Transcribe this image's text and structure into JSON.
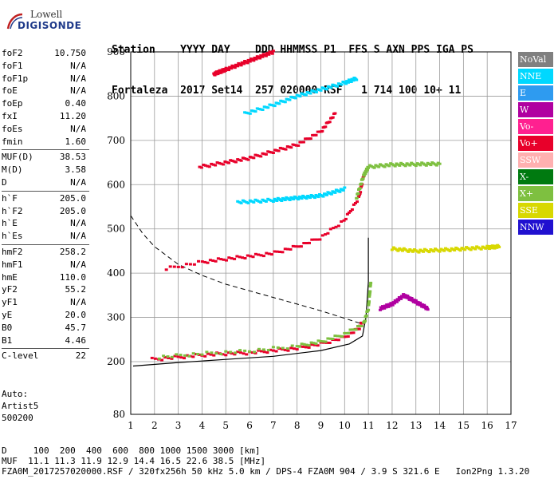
{
  "logo": {
    "line1": "Lowell",
    "line2": "DIGISONDE"
  },
  "header": {
    "line1": "Station    YYYY DAY    DDD HHMMSS P1  FFS S AXN PPS IGA PS",
    "line2": "Fortaleza  2017 Set14  257 020000 RSF   1 714 100 10+ 11"
  },
  "params": [
    {
      "label": "foF2",
      "value": "10.750"
    },
    {
      "label": "foF1",
      "value": "N/A"
    },
    {
      "label": "foF1p",
      "value": "N/A"
    },
    {
      "label": "foE",
      "value": "N/A"
    },
    {
      "label": "foEp",
      "value": "0.40"
    },
    {
      "label": "fxI",
      "value": "11.20"
    },
    {
      "label": "foEs",
      "value": "N/A"
    },
    {
      "label": "fmin",
      "value": "1.60"
    },
    {
      "label": "MUF(D)",
      "value": "38.53"
    },
    {
      "label": "M(D)",
      "value": "3.58"
    },
    {
      "label": "D",
      "value": "N/A"
    },
    {
      "label": "h`F",
      "value": "205.0"
    },
    {
      "label": "h`F2",
      "value": "205.0"
    },
    {
      "label": "h`E",
      "value": "N/A"
    },
    {
      "label": "h`Es",
      "value": "N/A"
    },
    {
      "label": "hmF2",
      "value": "258.2"
    },
    {
      "label": "hmF1",
      "value": "N/A"
    },
    {
      "label": "hmE",
      "value": "110.0"
    },
    {
      "label": "yF2",
      "value": "55.2"
    },
    {
      "label": "yF1",
      "value": "N/A"
    },
    {
      "label": "yE",
      "value": "20.0"
    },
    {
      "label": "B0",
      "value": "45.7"
    },
    {
      "label": "B1",
      "value": "4.46"
    },
    {
      "label": "C-level",
      "value": "22"
    }
  ],
  "auto": {
    "line1": "Auto:",
    "line2": "Artist5",
    "line3": "500200"
  },
  "legend": [
    {
      "label": "NoVal",
      "color": "#808080",
      "text": "#ffffff"
    },
    {
      "label": "NNE",
      "color": "#00d8ff",
      "text": "#ffffff"
    },
    {
      "label": "E",
      "color": "#2e9bf0",
      "text": "#ffffff"
    },
    {
      "label": "W",
      "color": "#b000a0",
      "text": "#ffffff"
    },
    {
      "label": "Vo-",
      "color": "#ff2090",
      "text": "#ffffff"
    },
    {
      "label": "Vo+",
      "color": "#e8002a",
      "text": "#ffffff"
    },
    {
      "label": "SSW",
      "color": "#ffb0b0",
      "text": "#ffffff"
    },
    {
      "label": "X-",
      "color": "#007a10",
      "text": "#ffffff"
    },
    {
      "label": "X+",
      "color": "#7ec040",
      "text": "#ffffff"
    },
    {
      "label": "SSE",
      "color": "#d8d800",
      "text": "#ffffff"
    },
    {
      "label": "NNW",
      "color": "#2010d0",
      "text": "#ffffff"
    }
  ],
  "footer": {
    "line1": "D     100  200  400  600  800 1000 1500 3000 [km]",
    "line2": "MUF  11.1 11.3 11.9 12.9 14.4 16.5 22.6 38.5 [MHz]",
    "line3": "FZA0M_2017257020000.RSF / 320fx256h 50 kHz 5.0 km / DPS-4 FZA0M 904 / 3.9 S 321.6 E   Ion2Png 1.3.20"
  },
  "chart_data": {
    "type": "scatter",
    "xlim": [
      1,
      17
    ],
    "ylim": [
      80,
      900
    ],
    "xticks": [
      "1",
      "2",
      "3",
      "4",
      "5",
      "6",
      "7",
      "8",
      "9",
      "10",
      "11",
      "12",
      "13",
      "14",
      "15",
      "16",
      "17"
    ],
    "yticks": [
      "900",
      "800",
      "700",
      "600",
      "500",
      "400",
      "300",
      "200",
      "80"
    ],
    "grid": true,
    "series": [
      {
        "name": "Vo+",
        "points": [
          [
            1.9,
            205
          ],
          [
            3,
            210
          ],
          [
            4,
            215
          ],
          [
            5,
            218
          ],
          [
            6,
            220
          ],
          [
            7,
            225
          ],
          [
            8,
            230
          ],
          [
            9,
            240
          ],
          [
            10,
            255
          ],
          [
            10.6,
            275
          ],
          [
            10.75,
            290
          ]
        ]
      },
      {
        "name": "X+",
        "points": [
          [
            2.2,
            210
          ],
          [
            4,
            218
          ],
          [
            6,
            224
          ],
          [
            8,
            235
          ],
          [
            9,
            245
          ],
          [
            10,
            262
          ],
          [
            10.8,
            285
          ],
          [
            11,
            320
          ],
          [
            11.1,
            380
          ]
        ]
      },
      {
        "name": "Vo+",
        "points": [
          [
            2.5,
            410
          ],
          [
            4,
            425
          ],
          [
            5,
            432
          ],
          [
            6,
            438
          ],
          [
            7,
            445
          ],
          [
            8,
            460
          ],
          [
            9,
            480
          ],
          [
            10,
            520
          ],
          [
            10.6,
            570
          ],
          [
            10.8,
            620
          ]
        ]
      },
      {
        "name": "X+",
        "points": [
          [
            10.5,
            570
          ],
          [
            10.8,
            620
          ],
          [
            11,
            640
          ],
          [
            12,
            645
          ],
          [
            13,
            646
          ],
          [
            14,
            647
          ]
        ]
      },
      {
        "name": "Vo+",
        "points": [
          [
            3.9,
            640
          ],
          [
            5,
            650
          ],
          [
            6,
            660
          ],
          [
            7,
            675
          ],
          [
            8,
            690
          ],
          [
            9,
            720
          ],
          [
            9.6,
            760
          ]
        ]
      },
      {
        "name": "Vo+",
        "points": [
          [
            4.5,
            850
          ],
          [
            5,
            860
          ],
          [
            6,
            880
          ],
          [
            7,
            900
          ]
        ]
      },
      {
        "name": "NNE",
        "points": [
          [
            5.5,
            560
          ],
          [
            7,
            565
          ],
          [
            8,
            570
          ],
          [
            9,
            575
          ],
          [
            10,
            590
          ]
        ]
      },
      {
        "name": "NNE",
        "points": [
          [
            5.8,
            760
          ],
          [
            7,
            780
          ],
          [
            8,
            800
          ],
          [
            9,
            815
          ],
          [
            10,
            830
          ],
          [
            10.5,
            840
          ]
        ]
      },
      {
        "name": "W",
        "points": [
          [
            11.5,
            320
          ],
          [
            12,
            330
          ],
          [
            12.5,
            350
          ],
          [
            13,
            335
          ],
          [
            13.5,
            320
          ]
        ]
      },
      {
        "name": "SSE",
        "points": [
          [
            12,
            455
          ],
          [
            13,
            450
          ],
          [
            14,
            452
          ],
          [
            15,
            455
          ],
          [
            16,
            458
          ],
          [
            16.5,
            460
          ]
        ]
      }
    ],
    "profile": [
      [
        1.1,
        190
      ],
      [
        3,
        198
      ],
      [
        5,
        205
      ],
      [
        7,
        212
      ],
      [
        9,
        225
      ],
      [
        10.2,
        240
      ],
      [
        10.75,
        258
      ],
      [
        10.9,
        300
      ],
      [
        11,
        380
      ],
      [
        11,
        480
      ]
    ],
    "mufcurve": [
      [
        1,
        530
      ],
      [
        1.5,
        490
      ],
      [
        2,
        460
      ],
      [
        2.5,
        440
      ],
      [
        3,
        420
      ],
      [
        4,
        395
      ],
      [
        5,
        375
      ],
      [
        6,
        360
      ],
      [
        7,
        345
      ],
      [
        8,
        330
      ],
      [
        9,
        315
      ],
      [
        10,
        298
      ],
      [
        10.75,
        285
      ]
    ]
  }
}
